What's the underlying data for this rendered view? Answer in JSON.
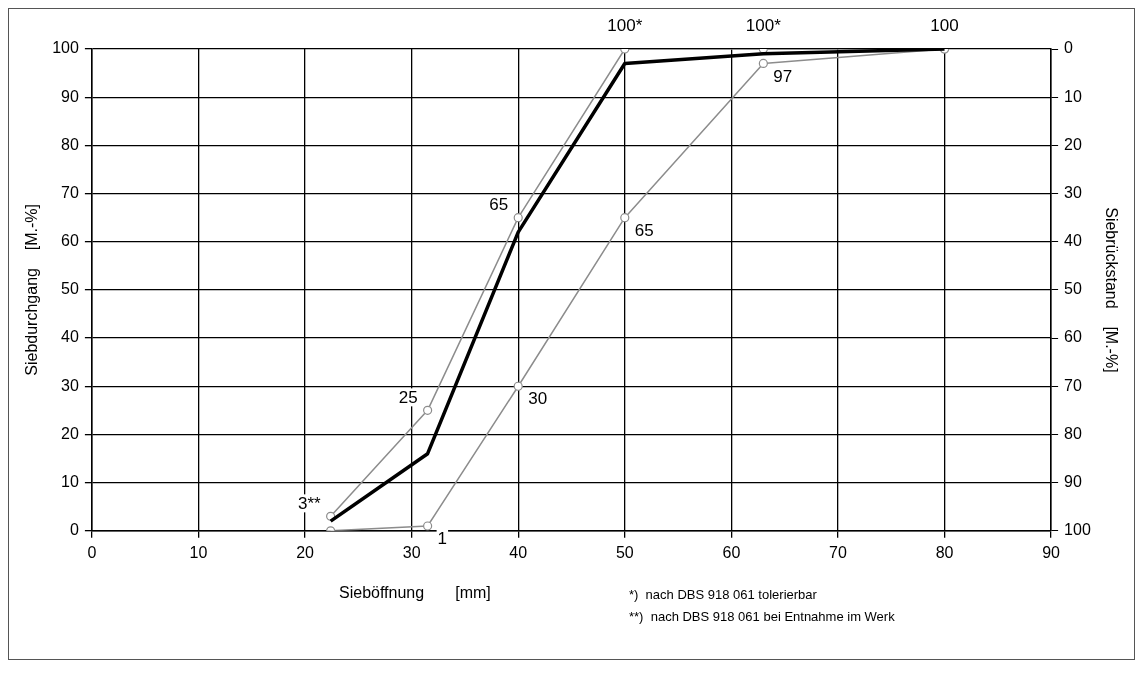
{
  "chart_data": {
    "type": "line",
    "xlabel": "Sieböffnung       [mm]",
    "ylabel": "Siebdurchgang    [M.-%]",
    "y2label": "Siebrückstand    [M.-%]",
    "xlim": [
      0,
      90
    ],
    "xticks": [
      0,
      10,
      20,
      30,
      40,
      50,
      60,
      70,
      80,
      90
    ],
    "ylim": [
      0,
      100
    ],
    "yticks": [
      0,
      10,
      20,
      30,
      40,
      50,
      60,
      70,
      80,
      90,
      100
    ],
    "y2lim": [
      100,
      0
    ],
    "y2ticks": [
      0,
      10,
      20,
      30,
      40,
      50,
      60,
      70,
      80,
      90,
      100
    ],
    "grid": true,
    "legend": false,
    "marker": "circle",
    "line_style": "solid",
    "series": [
      {
        "color": "#8c8c8c",
        "x": [
          22.4,
          31.5,
          40,
          50,
          63,
          80
        ],
        "values": [
          3,
          25,
          65,
          100,
          100,
          100
        ],
        "value_labels": [
          "3**",
          "25",
          "65",
          "100*",
          "100*",
          "100"
        ]
      },
      {
        "color": "#8c8c8c",
        "x": [
          22.4,
          31.5,
          40,
          50,
          63,
          80
        ],
        "values": [
          0,
          1,
          30,
          65,
          97,
          100
        ],
        "value_labels": [
          null,
          "1",
          "30",
          "65",
          "97",
          null
        ]
      },
      {
        "color": "#000000",
        "marker": "none",
        "x": [
          22.4,
          31.5,
          40,
          50,
          63,
          80
        ],
        "values": [
          2,
          16,
          62,
          97,
          99,
          100
        ]
      }
    ],
    "annotations": [
      "*)  nach DBS 918 061 tolerierbar",
      "**)  nach DBS 918 061 bei Entnahme im Werk"
    ]
  }
}
